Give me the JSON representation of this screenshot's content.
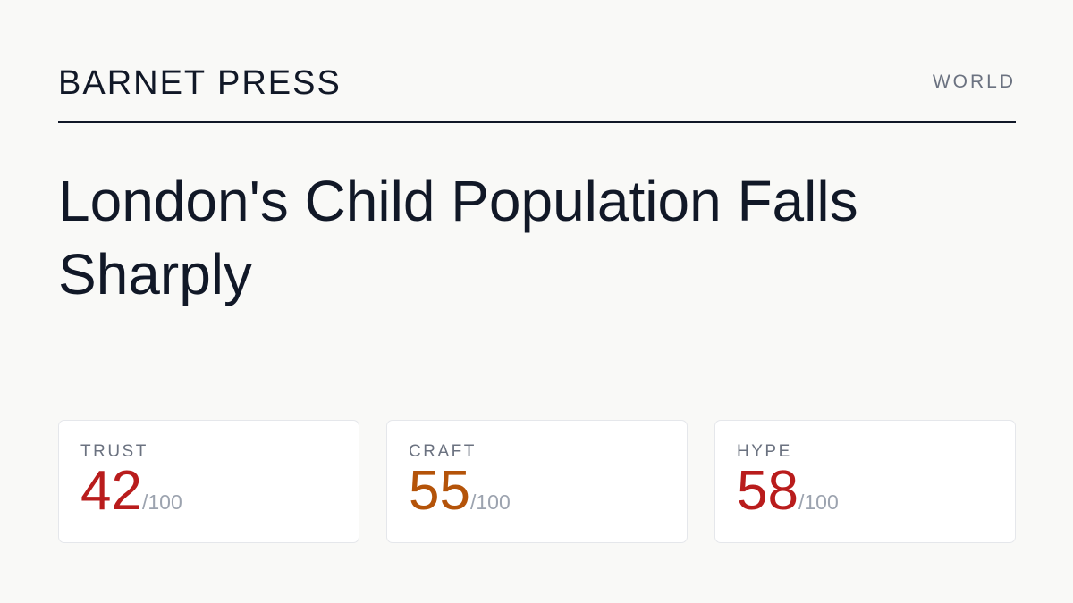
{
  "header": {
    "publication": "BARNET PRESS",
    "section": "WORLD"
  },
  "headline": "London's Child Population Falls Sharply",
  "scores": [
    {
      "label": "TRUST",
      "value": 42,
      "out_of": "/100",
      "color": "#b91c1c"
    },
    {
      "label": "CRAFT",
      "value": 55,
      "out_of": "/100",
      "color": "#b45309"
    },
    {
      "label": "HYPE",
      "value": 58,
      "out_of": "/100",
      "color": "#b91c1c"
    }
  ]
}
